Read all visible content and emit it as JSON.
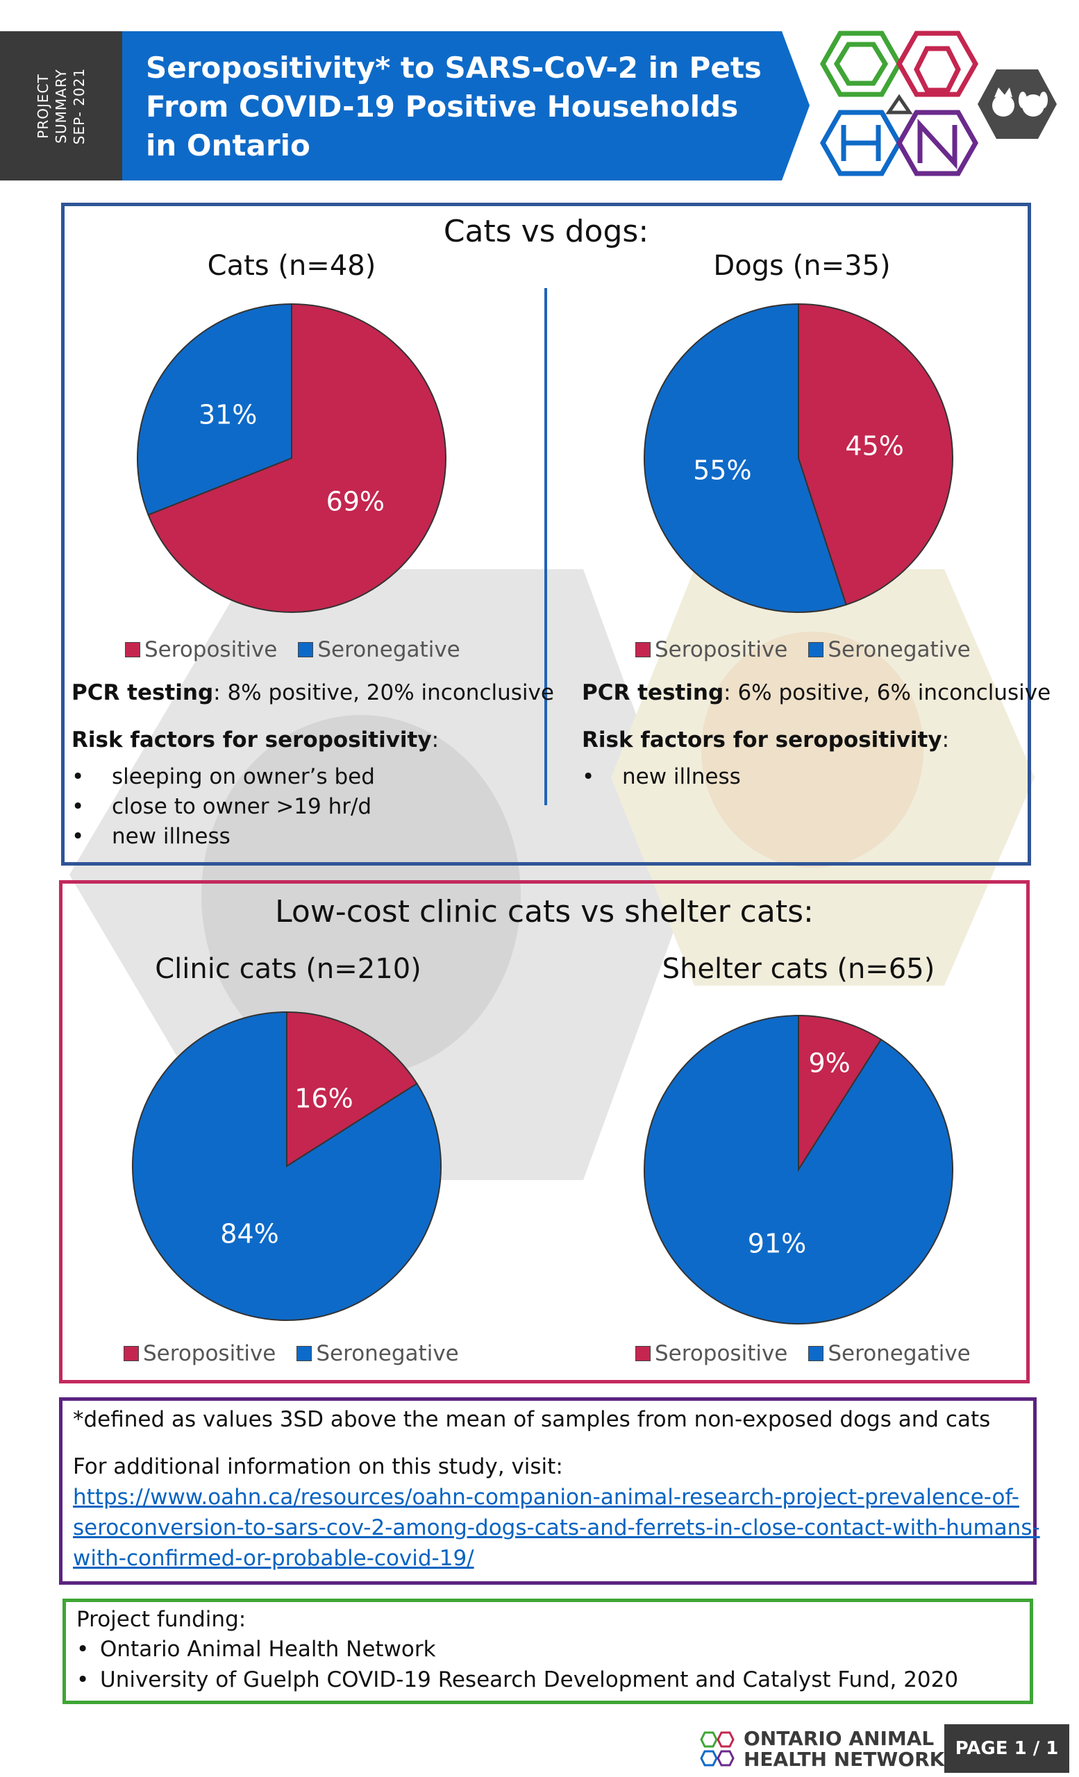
{
  "header": {
    "side_tab": "PROJECT SUMMARY SEP- 2021",
    "side_tab_line1": "PROJECT",
    "side_tab_line2": "SUMMARY",
    "side_tab_line3": "SEP- 2021",
    "title_line1": "Seropositivity* to SARS-CoV-2 in Pets",
    "title_line2": "From COVID-19 Positive Households",
    "title_line3": "in Ontario",
    "banner_color": "#0e6ac8"
  },
  "section1": {
    "title": "Cats vs dogs:",
    "cats": {
      "pcr_label": "PCR testing",
      "pcr_text": ": 8% positive, 20% inconclusive",
      "risk_label": "Risk factors for seropositivity",
      "risk_suffix": ":",
      "risk_factors": [
        "sleeping on owner’s bed",
        "close to owner >19 hr/d",
        "new illness"
      ]
    },
    "dogs": {
      "pcr_label": "PCR testing",
      "pcr_text": ": 6% positive, 6% inconclusive",
      "risk_label": "Risk factors for seropositivity",
      "risk_suffix": ":",
      "risk_factors": [
        "new illness"
      ]
    }
  },
  "section2": {
    "title": "Low-cost clinic cats vs shelter cats:"
  },
  "legend": {
    "seropositive": "Seropositive",
    "seronegative": "Seronegative"
  },
  "colors": {
    "seropositive": "#c4264f",
    "seronegative": "#0e6ac8"
  },
  "chart_data": [
    {
      "type": "pie",
      "title": "Cats (n=48)",
      "categories": [
        "Seropositive",
        "Seronegative"
      ],
      "values": [
        69,
        31
      ],
      "labels": [
        "69%",
        "31%"
      ]
    },
    {
      "type": "pie",
      "title": "Dogs (n=35)",
      "categories": [
        "Seropositive",
        "Seronegative"
      ],
      "values": [
        45,
        55
      ],
      "labels": [
        "45%",
        "55%"
      ]
    },
    {
      "type": "pie",
      "title": "Clinic cats (n=210)",
      "categories": [
        "Seropositive",
        "Seronegative"
      ],
      "values": [
        16,
        84
      ],
      "labels": [
        "16%",
        "84%"
      ]
    },
    {
      "type": "pie",
      "title": "Shelter cats (n=65)",
      "categories": [
        "Seropositive",
        "Seronegative"
      ],
      "values": [
        9,
        91
      ],
      "labels": [
        "9%",
        "91%"
      ]
    }
  ],
  "notes": {
    "definition": "*defined as values 3SD above the mean of samples from non-exposed dogs and cats",
    "more_info": "For additional information on this study, visit:",
    "link_line1": "https://www.oahn.ca/resources/oahn-companion-animal-research-project-prevalence-of-",
    "link_line2": "seroconversion-to-sars-cov-2-among-dogs-cats-and-ferrets-in-close-contact-with-humans-",
    "link_line3": "with-confirmed-or-probable-covid-19/"
  },
  "funding": {
    "title": "Project funding:",
    "items": [
      "Ontario Animal Health Network",
      "University of Guelph COVID-19 Research Development and Catalyst Fund, 2020"
    ]
  },
  "footer": {
    "org_line1": "ONTARIO ANIMAL",
    "org_line2": "HEALTH NETWORK",
    "page": "PAGE 1 / 1"
  }
}
